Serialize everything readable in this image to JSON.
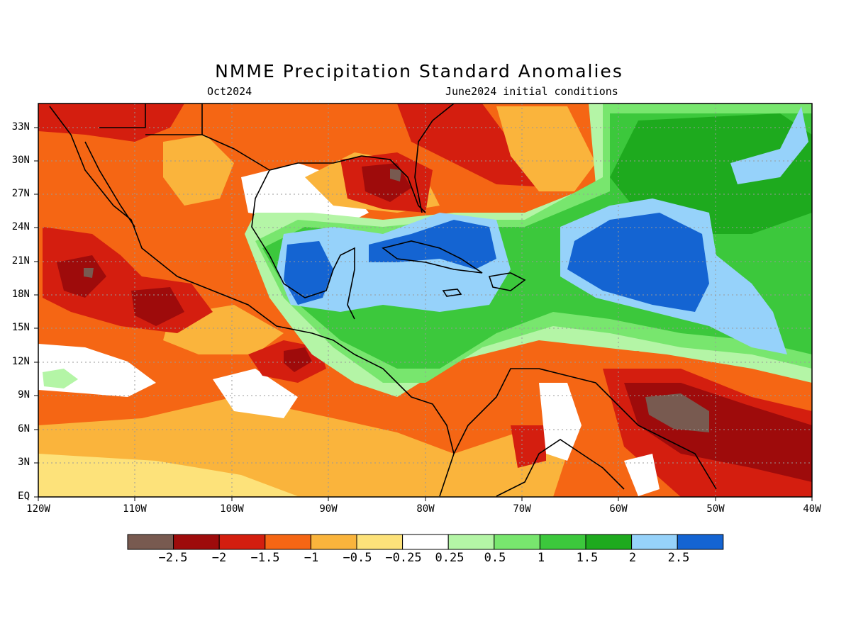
{
  "title": "NMME Precipitation Standard Anomalies",
  "valid_month": "Oct2024",
  "init_text": "June2024 initial conditions",
  "lat_labels": [
    "33N",
    "30N",
    "27N",
    "24N",
    "21N",
    "18N",
    "15N",
    "12N",
    "9N",
    "6N",
    "3N",
    "EQ"
  ],
  "lon_labels": [
    "120W",
    "110W",
    "100W",
    "90W",
    "80W",
    "70W",
    "60W",
    "50W",
    "40W"
  ],
  "legend": {
    "colors": [
      "#785a50",
      "#9e0b0b",
      "#d41e0f",
      "#f56614",
      "#fab43c",
      "#fde27a",
      "#ffffff",
      "#b4f5a6",
      "#78e66e",
      "#3cc83c",
      "#1eaa1e",
      "#96d2fa",
      "#1464d2"
    ],
    "labels": [
      "-2.5",
      "-2",
      "-1.5",
      "-1",
      "-0.5",
      "-0.25",
      "0.25",
      "0.5",
      "1",
      "1.5",
      "2",
      "2.5"
    ]
  },
  "colors": {
    "strong_dry": "#785a50",
    "very_dry": "#9e0b0b",
    "dry": "#d41e0f",
    "moderately_dry": "#f56614",
    "slightly_dry": "#fab43c",
    "marginally_dry": "#fde27a",
    "near_normal": "#ffffff",
    "marginally_wet": "#b4f5a6",
    "slightly_wet": "#78e66e",
    "wet": "#3cc83c",
    "very_wet": "#1eaa1e",
    "strong_wet": "#96d2fa",
    "extreme_wet": "#1464d2"
  }
}
